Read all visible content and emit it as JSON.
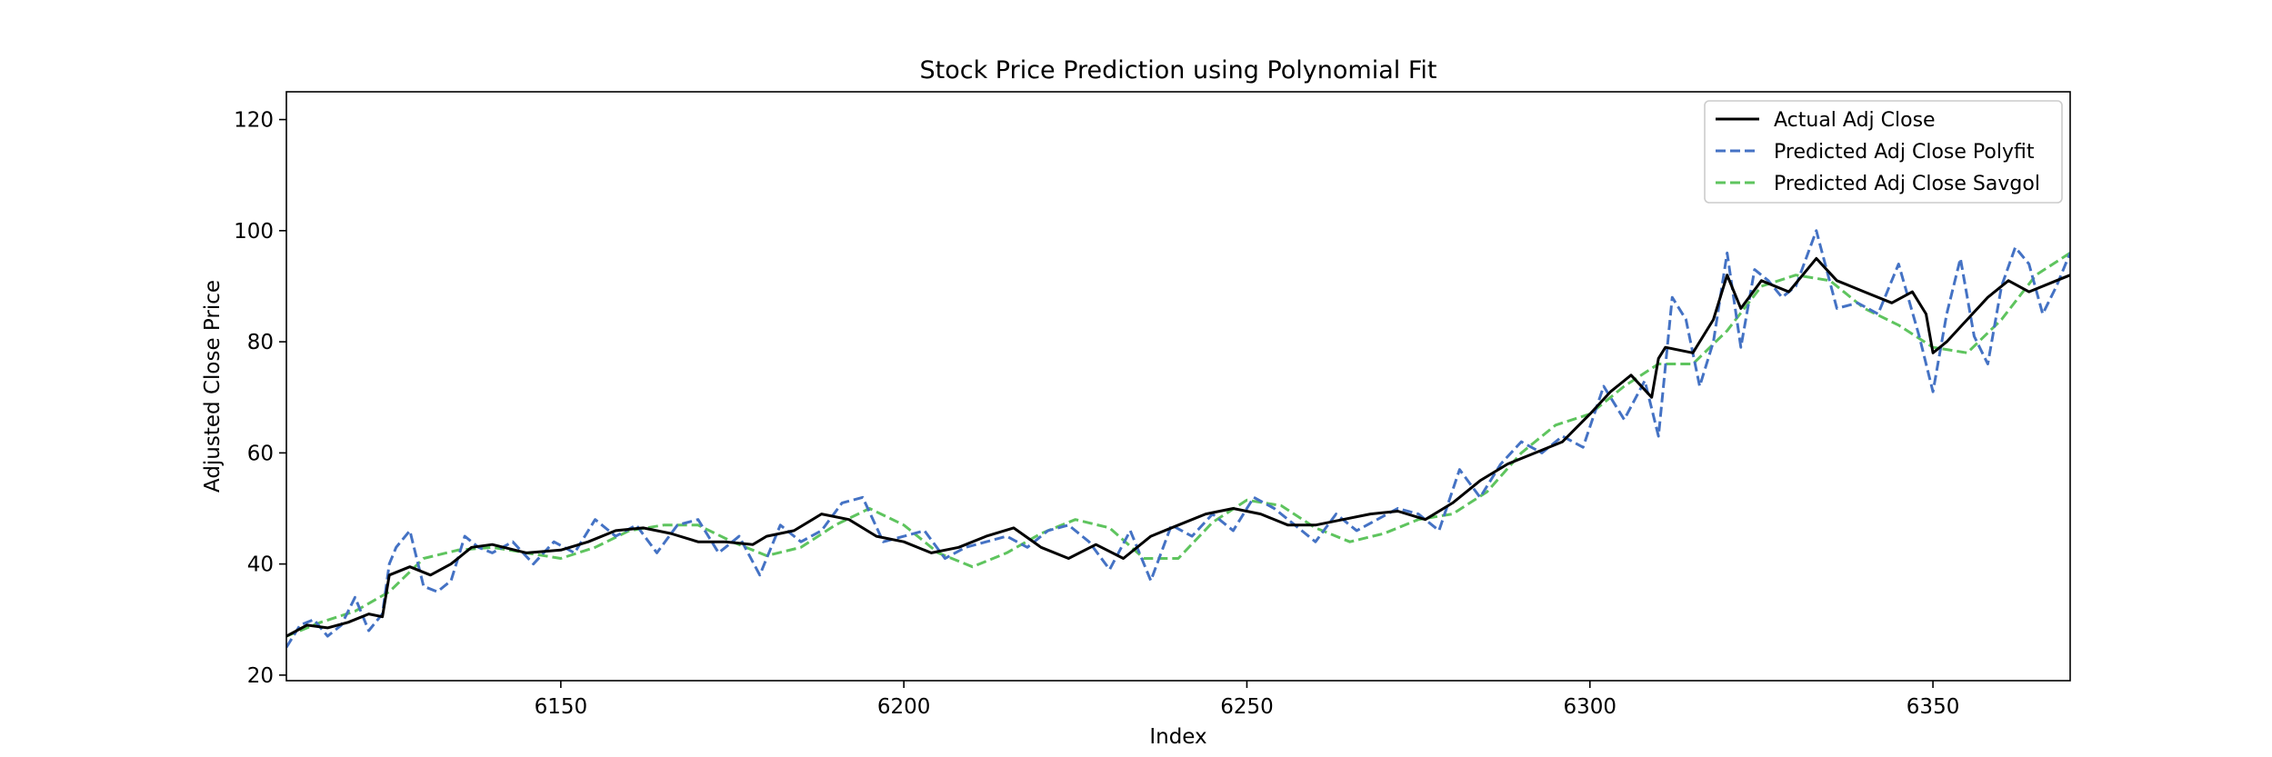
{
  "chart_data": {
    "type": "line",
    "title": "Stock Price Prediction using Polynomial Fit",
    "xlabel": "Index",
    "ylabel": "Adjusted Close Price",
    "xlim": [
      6110,
      6370
    ],
    "ylim": [
      19,
      125
    ],
    "xticks": [
      6150,
      6200,
      6250,
      6300,
      6350
    ],
    "yticks": [
      20,
      40,
      60,
      80,
      100,
      120
    ],
    "grid": false,
    "legend_position": "top-right",
    "series": [
      {
        "name": "Actual Adj Close",
        "color": "#000000",
        "style": "solid",
        "x": [
          6110,
          6113,
          6116,
          6119,
          6122,
          6124,
          6125,
          6128,
          6131,
          6134,
          6137,
          6140,
          6145,
          6150,
          6154,
          6158,
          6162,
          6166,
          6170,
          6174,
          6178,
          6180,
          6184,
          6188,
          6192,
          6196,
          6200,
          6204,
          6208,
          6212,
          6216,
          6220,
          6224,
          6228,
          6232,
          6236,
          6240,
          6244,
          6248,
          6252,
          6256,
          6260,
          6264,
          6268,
          6272,
          6276,
          6280,
          6284,
          6288,
          6292,
          6296,
          6300,
          6303,
          6306,
          6309,
          6310,
          6311,
          6315,
          6318,
          6320,
          6322,
          6325,
          6329,
          6333,
          6336,
          6340,
          6344,
          6347,
          6349,
          6350,
          6352,
          6355,
          6358,
          6361,
          6364,
          6368,
          6370
        ],
        "values": [
          27,
          29,
          28.5,
          29.5,
          31,
          30.5,
          38,
          39.5,
          38,
          40,
          43,
          43.5,
          42,
          42.5,
          44,
          46,
          46.5,
          45.5,
          44,
          44,
          43.5,
          45,
          46,
          49,
          48,
          45,
          44,
          42,
          43,
          45,
          46.5,
          43,
          41,
          43.5,
          41,
          45,
          47,
          49,
          50,
          49,
          47,
          47,
          48,
          49,
          49.5,
          48,
          51,
          55,
          58,
          60,
          62,
          67,
          71,
          74,
          70,
          77,
          79,
          78,
          84,
          92,
          86,
          91,
          89,
          95,
          91,
          89,
          87,
          89,
          85,
          78,
          80,
          84,
          88,
          91,
          89,
          91,
          92
        ]
      },
      {
        "name": "Predicted Adj Close Polyfit",
        "color": "#4472c4",
        "style": "dashed",
        "x": [
          6110,
          6112,
          6114,
          6116,
          6118,
          6120,
          6122,
          6124,
          6125,
          6126,
          6128,
          6130,
          6132,
          6134,
          6136,
          6138,
          6140,
          6143,
          6146,
          6149,
          6152,
          6155,
          6158,
          6161,
          6164,
          6167,
          6170,
          6173,
          6176,
          6179,
          6182,
          6185,
          6188,
          6191,
          6194,
          6197,
          6200,
          6203,
          6206,
          6209,
          6212,
          6215,
          6218,
          6221,
          6224,
          6227,
          6230,
          6233,
          6236,
          6239,
          6242,
          6245,
          6248,
          6251,
          6254,
          6257,
          6260,
          6263,
          6266,
          6269,
          6272,
          6275,
          6278,
          6281,
          6284,
          6287,
          6290,
          6293,
          6296,
          6299,
          6302,
          6305,
          6308,
          6310,
          6312,
          6314,
          6316,
          6318,
          6320,
          6322,
          6324,
          6326,
          6328,
          6330,
          6333,
          6336,
          6339,
          6342,
          6345,
          6348,
          6350,
          6352,
          6354,
          6356,
          6358,
          6360,
          6362,
          6364,
          6366,
          6368,
          6370
        ],
        "values": [
          25,
          29,
          30,
          27,
          29,
          34,
          28,
          31,
          40,
          43,
          46,
          36,
          35,
          37,
          45,
          43,
          42,
          44,
          40,
          44,
          42,
          48,
          45,
          47,
          42,
          47,
          48,
          42,
          45,
          38,
          47,
          44,
          46,
          51,
          52,
          44,
          45,
          46,
          41,
          43,
          44,
          45,
          43,
          46,
          47,
          44,
          39,
          46,
          37,
          47,
          45,
          49,
          46,
          52,
          50,
          47,
          44,
          49,
          46,
          48,
          50,
          49,
          46,
          57,
          52,
          58,
          62,
          60,
          63,
          61,
          72,
          66,
          73,
          63,
          88,
          84,
          72,
          80,
          96,
          79,
          93,
          91,
          88,
          90,
          100,
          86,
          87,
          85,
          94,
          81,
          71,
          85,
          95,
          81,
          76,
          90,
          97,
          94,
          85,
          90,
          96
        ]
      },
      {
        "name": "Predicted Adj Close Savgol",
        "color": "#5ec45e",
        "style": "dashed",
        "x": [
          6110,
          6115,
          6120,
          6125,
          6130,
          6135,
          6140,
          6145,
          6150,
          6155,
          6160,
          6165,
          6170,
          6175,
          6180,
          6185,
          6190,
          6195,
          6200,
          6205,
          6210,
          6215,
          6220,
          6225,
          6230,
          6235,
          6240,
          6245,
          6250,
          6255,
          6260,
          6265,
          6270,
          6275,
          6280,
          6285,
          6290,
          6295,
          6300,
          6305,
          6310,
          6315,
          6320,
          6325,
          6330,
          6335,
          6340,
          6345,
          6350,
          6355,
          6360,
          6365,
          6370
        ],
        "values": [
          27,
          29.5,
          31.5,
          35,
          41,
          42.5,
          43,
          42,
          41,
          43,
          46,
          47,
          47,
          44,
          41.5,
          43,
          47,
          50,
          47,
          42,
          39.5,
          42,
          45.5,
          48,
          46.5,
          41,
          41,
          47.5,
          51.5,
          50.5,
          46.5,
          44,
          45.5,
          48,
          49,
          53,
          60,
          65,
          67,
          72,
          76,
          76,
          82,
          90,
          92,
          91,
          86,
          83,
          79,
          78,
          84,
          92,
          96
        ]
      }
    ]
  }
}
